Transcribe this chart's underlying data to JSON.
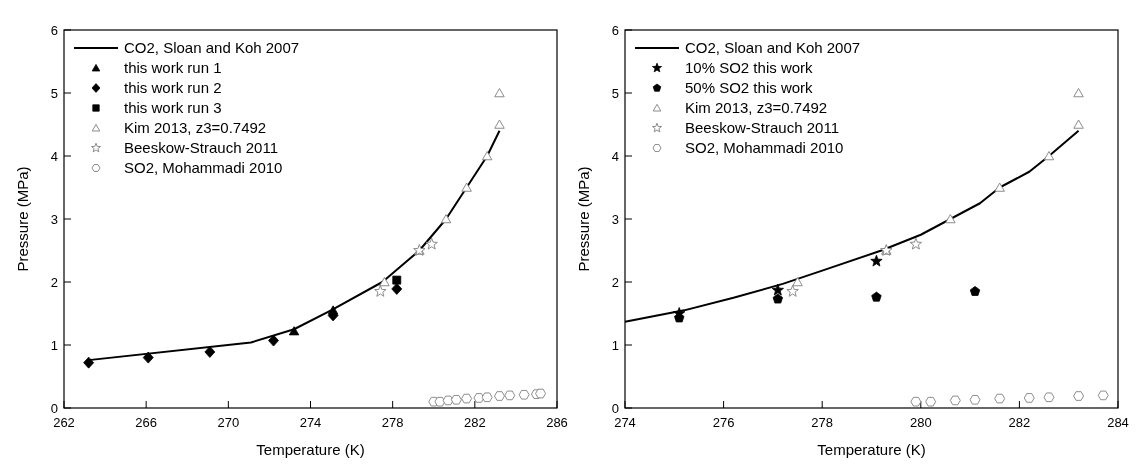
{
  "chart_data": [
    {
      "type": "scatter",
      "xlabel": "Temperature (K)",
      "ylabel": "Pressure (MPa)",
      "xlim": [
        262,
        286
      ],
      "xticks": [
        262,
        266,
        270,
        274,
        278,
        282,
        286
      ],
      "ylim": [
        0,
        6
      ],
      "yticks": [
        0,
        1,
        2,
        3,
        4,
        5,
        6
      ],
      "grid": false,
      "legend": "top left",
      "series": [
        {
          "name": "CO2, Sloan and Koh 2007",
          "type": "line",
          "color": "#000000",
          "marker": "none",
          "line_style": "solid",
          "x": [
            263.2,
            271.1,
            273.2,
            275,
            277.5,
            279.3,
            280.6,
            281.6,
            282.6,
            283.2
          ],
          "values": [
            0.76,
            1.04,
            1.25,
            1.55,
            2.0,
            2.5,
            3.0,
            3.5,
            4.0,
            4.4
          ]
        },
        {
          "name": "this work run 1",
          "color": "#000000",
          "marker": "triangle",
          "x": [
            273.2,
            275.1
          ],
          "values": [
            1.22,
            1.55
          ]
        },
        {
          "name": "this work run 2",
          "color": "#000000",
          "marker": "diamond",
          "x": [
            263.2,
            266.1,
            269.1,
            272.2,
            275.1,
            278.2
          ],
          "values": [
            0.72,
            0.8,
            0.89,
            1.07,
            1.47,
            1.89
          ]
        },
        {
          "name": "this work run 3",
          "color": "#000000",
          "marker": "square",
          "x": [
            278.2
          ],
          "values": [
            2.03
          ]
        },
        {
          "name": "Kim 2013, z3=0.7492",
          "color": "#808080",
          "marker": "triangle-open",
          "x": [
            277.6,
            279.3,
            280.6,
            281.6,
            282.6,
            283.2,
            283.2
          ],
          "values": [
            2.0,
            2.5,
            3.0,
            3.5,
            4.0,
            4.5,
            5.0
          ]
        },
        {
          "name": "Beeskow-Strauch 2011",
          "color": "#808080",
          "marker": "star-open",
          "x": [
            277.4,
            279.3,
            279.9
          ],
          "values": [
            1.85,
            2.5,
            2.6
          ]
        },
        {
          "name": "SO2, Mohammadi 2010",
          "color": "#808080",
          "x": [
            280.0,
            280.3,
            280.7,
            281.1,
            281.6,
            282.2,
            282.6,
            283.2,
            283.7,
            284.4,
            285.0,
            285.2
          ],
          "values": [
            0.1,
            0.1,
            0.12,
            0.13,
            0.15,
            0.16,
            0.17,
            0.19,
            0.2,
            0.21,
            0.22,
            0.23
          ]
        }
      ]
    },
    {
      "type": "scatter",
      "xlabel": "Temperature (K)",
      "ylabel": "Pressure (MPa)",
      "xlim": [
        274,
        284
      ],
      "xticks": [
        274,
        276,
        278,
        280,
        282,
        284
      ],
      "ylim": [
        0,
        6
      ],
      "yticks": [
        0,
        1,
        2,
        3,
        4,
        5,
        6
      ],
      "grid": false,
      "legend": "top left",
      "series": [
        {
          "name": "CO2, Sloan and Koh 2007",
          "type": "line",
          "color": "#000000",
          "marker": "none",
          "line_style": "solid",
          "x": [
            274,
            275.2,
            276.2,
            277.2,
            278,
            279.2,
            280,
            280.6,
            281.2,
            281.6,
            282.2,
            282.6,
            283.2
          ],
          "values": [
            1.37,
            1.55,
            1.75,
            1.97,
            2.18,
            2.5,
            2.75,
            3.0,
            3.25,
            3.5,
            3.75,
            4.0,
            4.4
          ]
        },
        {
          "name": "10% SO2 this work",
          "color": "#000000",
          "marker": "star",
          "x": [
            275.1,
            277.1,
            279.1
          ],
          "values": [
            1.5,
            1.87,
            2.33
          ]
        },
        {
          "name": "50% SO2 this work",
          "color": "#000000",
          "x": [
            275.1,
            277.1,
            279.1,
            281.1
          ],
          "values": [
            1.43,
            1.73,
            1.76,
            1.85
          ]
        },
        {
          "name": "Kim 2013, z3=0.7492",
          "color": "#808080",
          "marker": "triangle-open",
          "x": [
            277.5,
            279.3,
            280.6,
            281.6,
            282.6,
            283.2,
            283.2
          ],
          "values": [
            2.0,
            2.5,
            3.0,
            3.5,
            4.0,
            4.5,
            5.0
          ]
        },
        {
          "name": "Beeskow-Strauch 2011",
          "color": "#808080",
          "marker": "star-open",
          "x": [
            277.4,
            279.3,
            279.9
          ],
          "values": [
            1.85,
            2.5,
            2.6
          ]
        },
        {
          "name": "SO2, Mohammadi 2010",
          "color": "#808080",
          "x": [
            279.9,
            280.2,
            280.7,
            281.1,
            281.6,
            282.2,
            282.6,
            283.2,
            283.7
          ],
          "values": [
            0.1,
            0.1,
            0.12,
            0.13,
            0.15,
            0.16,
            0.17,
            0.19,
            0.2
          ]
        }
      ]
    }
  ]
}
